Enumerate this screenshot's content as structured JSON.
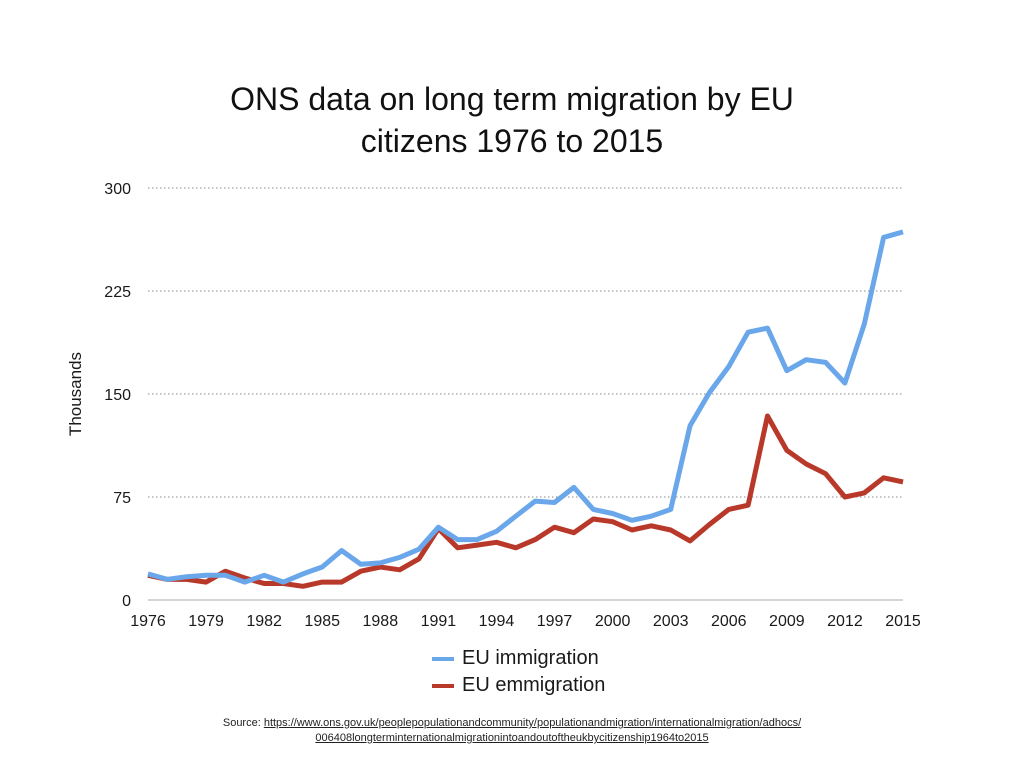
{
  "title": {
    "line1": "ONS data on long term migration by EU",
    "line2": "citizens 1976 to 2015"
  },
  "source": {
    "prefix": "Source: ",
    "url_line1": "https://www.ons.gov.uk/peoplepopulationandcommunity/populationandmigration/internationalmigration/adhocs/",
    "url_line2": "006408longterminternationalmigrationintoandoutoftheukbycitizenship1964to2015"
  },
  "chart_data": {
    "type": "line",
    "title": "ONS data on long term migration by EU citizens 1976 to 2015",
    "xlabel": "",
    "ylabel": "Thousands",
    "ylim": [
      0,
      300
    ],
    "xlim": [
      1976,
      2015
    ],
    "yticks": [
      0,
      75,
      150,
      225,
      300
    ],
    "xticks": [
      1976,
      1979,
      1982,
      1985,
      1988,
      1991,
      1994,
      1997,
      2000,
      2003,
      2006,
      2009,
      2012,
      2015
    ],
    "grid": "horizontal-dotted",
    "legend_position": "bottom",
    "x": [
      1976,
      1977,
      1978,
      1979,
      1980,
      1981,
      1982,
      1983,
      1984,
      1985,
      1986,
      1987,
      1988,
      1989,
      1990,
      1991,
      1992,
      1993,
      1994,
      1995,
      1996,
      1997,
      1998,
      1999,
      2000,
      2001,
      2002,
      2003,
      2004,
      2005,
      2006,
      2007,
      2008,
      2009,
      2010,
      2011,
      2012,
      2013,
      2014,
      2015
    ],
    "series": [
      {
        "name": "EU immigration",
        "color": "#6aa7ea",
        "values": [
          19,
          15,
          17,
          18,
          18,
          13,
          18,
          13,
          19,
          24,
          36,
          26,
          27,
          31,
          37,
          53,
          44,
          44,
          50,
          61,
          72,
          71,
          82,
          66,
          63,
          58,
          61,
          66,
          127,
          151,
          170,
          195,
          198,
          167,
          175,
          173,
          158,
          201,
          264,
          268
        ]
      },
      {
        "name": "EU emmigration",
        "color": "#b8382a",
        "values": [
          18,
          15,
          15,
          13,
          21,
          16,
          12,
          12,
          10,
          13,
          13,
          21,
          24,
          22,
          30,
          52,
          38,
          40,
          42,
          38,
          44,
          53,
          49,
          59,
          57,
          51,
          54,
          51,
          43,
          55,
          66,
          69,
          134,
          109,
          99,
          92,
          75,
          78,
          89,
          86
        ]
      }
    ]
  }
}
